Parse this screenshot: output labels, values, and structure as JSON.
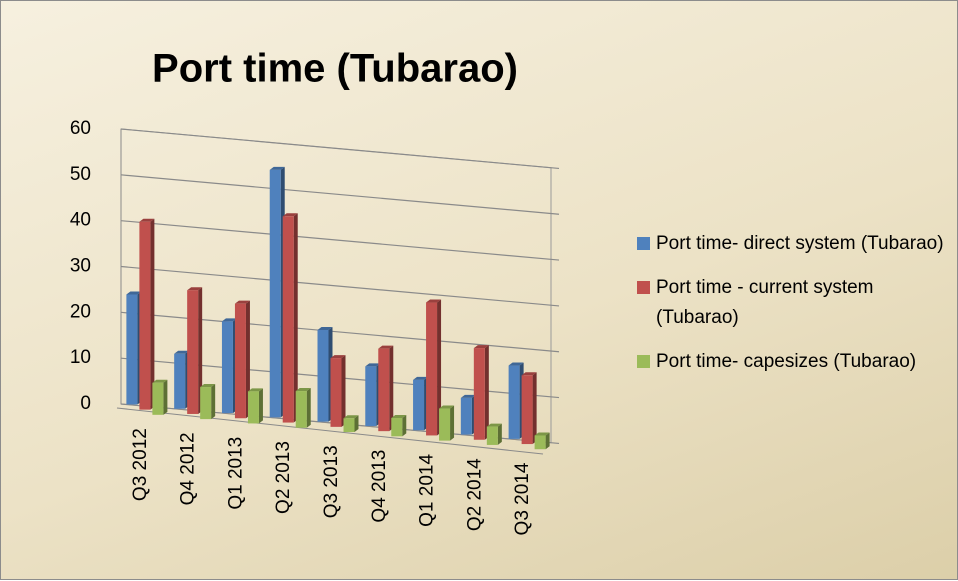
{
  "chart_data": {
    "type": "bar3d",
    "title": "Port time (Tubarao)",
    "categories": [
      "Q3 2012",
      "Q4 2012",
      "Q1 2013",
      "Q2 2013",
      "Q3 2013",
      "Q4 2013",
      "Q1 2014",
      "Q2 2014",
      "Q3 2014"
    ],
    "series": [
      {
        "name": "Port time- direct system (Tubarao)",
        "color": "#4f81bd",
        "values": [
          24,
          12,
          20,
          54,
          20,
          13,
          11,
          8,
          16
        ]
      },
      {
        "name": "Port time - current system (Tubarao)",
        "color": "#c0504d",
        "values": [
          41,
          27,
          25,
          45,
          15,
          18,
          29,
          20,
          15
        ]
      },
      {
        "name": "Port time- capesizes (Tubarao)",
        "color": "#9bbb59",
        "values": [
          7,
          7,
          7,
          8,
          3,
          4,
          7,
          4,
          3
        ]
      }
    ],
    "ylim": [
      0,
      60
    ],
    "yticks": [
      0,
      10,
      20,
      30,
      40,
      50,
      60
    ],
    "grid": true,
    "legend": "right"
  }
}
